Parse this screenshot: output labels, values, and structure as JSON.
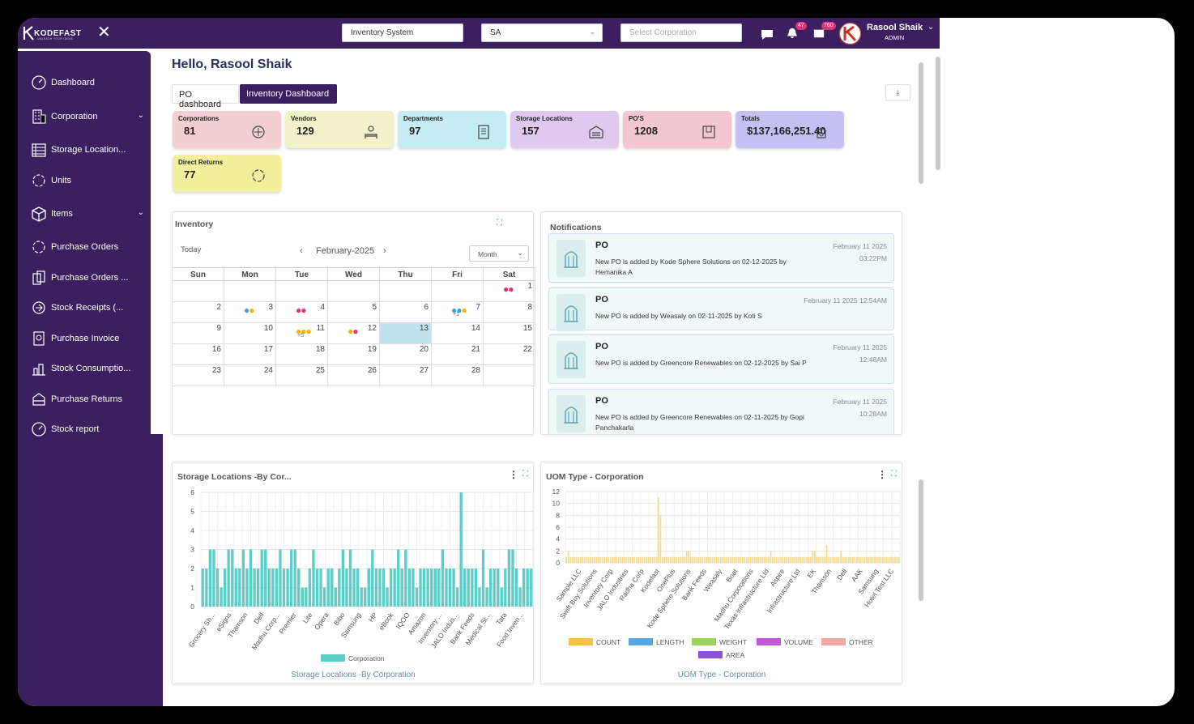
{
  "brand": {
    "name": "KODEFAST",
    "tagline": "UNLEASH YOUR IDEAS"
  },
  "topbar": {
    "system_value": "Inventory System",
    "company_value": "SA",
    "corporation_placeholder": "Select Corporation",
    "notif_count": "47",
    "msg_count": "760",
    "user_name": "Rasool Shaik",
    "user_role": "ADMIN"
  },
  "sidebar": {
    "items": [
      {
        "label": "Dashboard",
        "icon": "dashboard-icon"
      },
      {
        "label": "Corporation",
        "icon": "building-icon"
      },
      {
        "label": "Storage Location...",
        "icon": "warehouse-icon"
      },
      {
        "label": "Units",
        "icon": "units-icon"
      },
      {
        "label": "Items",
        "icon": "box-icon"
      },
      {
        "label": "Purchase Orders",
        "icon": "purchase-orders-icon"
      },
      {
        "label": "Purchase Orders ...",
        "icon": "purchase-orders-alt-icon"
      },
      {
        "label": "Stock Receipts (...",
        "icon": "stock-receipts-icon"
      },
      {
        "label": "Purchase Invoice",
        "icon": "invoice-icon"
      },
      {
        "label": "Stock Consumptio...",
        "icon": "stock-consumption-icon"
      },
      {
        "label": "Purchase Returns",
        "icon": "returns-icon"
      },
      {
        "label": "Stock report",
        "icon": "report-icon"
      }
    ]
  },
  "main": {
    "greeting": "Hello, Rasool Shaik",
    "tabs": [
      "PO dashboard",
      "Inventory Dashboard"
    ]
  },
  "cards": [
    {
      "label": "Corporations",
      "value": "81",
      "color": "#f3cfd2"
    },
    {
      "label": "Vendors",
      "value": "129",
      "color": "#f1f2c9"
    },
    {
      "label": "Departments",
      "value": "97",
      "color": "#c4ecf2"
    },
    {
      "label": "Storage Locations",
      "value": "157",
      "color": "#e0c9ee"
    },
    {
      "label": "PO'S",
      "value": "1208",
      "color": "#f3c7cf"
    },
    {
      "label": "Totals",
      "value": "$137,166,251.40",
      "color": "#c5c0f3"
    },
    {
      "label": "Direct Returns",
      "value": "77",
      "color": "#f4ef9c"
    }
  ],
  "calendar": {
    "title": "Inventory",
    "today": "Today",
    "month_label": "February-2025",
    "view": "Month",
    "days": [
      "Sun",
      "Mon",
      "Tue",
      "Wed",
      "Thu",
      "Fri",
      "Sat"
    ],
    "weeks": [
      [
        "",
        "",
        "",
        "",
        "",
        "",
        "1"
      ],
      [
        "2",
        "3",
        "4",
        "5",
        "6",
        "7",
        "8"
      ],
      [
        "9",
        "10",
        "11",
        "12",
        "13",
        "14",
        "15"
      ],
      [
        "16",
        "17",
        "18",
        "19",
        "20",
        "21",
        "22"
      ],
      [
        "23",
        "24",
        "25",
        "26",
        "27",
        "28",
        ""
      ]
    ],
    "highlight": "13",
    "events": {
      "1": {
        "dots": [
          "#e0347a",
          "#e0347a"
        ]
      },
      "3": {
        "dots": [
          "#3aa3d8",
          "#f4b400"
        ]
      },
      "4": {
        "dots": [
          "#e0347a",
          "#e0347a"
        ]
      },
      "7": {
        "dots": [
          "#3aa3d8",
          "#3aa3d8",
          "#f4b400"
        ],
        "more": "+1"
      },
      "11": {
        "dots": [
          "#f4b400",
          "#f4b400",
          "#f4b400"
        ],
        "more": "+5"
      },
      "12": {
        "dots": [
          "#f4b400",
          "#e0347a"
        ]
      }
    }
  },
  "notifications": {
    "title": "Notifications",
    "items": [
      {
        "type": "PO",
        "date": "February 11 2025",
        "time": "03:22PM",
        "message": "New PO is added by Kode Sphere Solutions on 02-12-2025 by Hemanika A"
      },
      {
        "type": "PO",
        "date": "February 11 2025 12:54AM",
        "time": "",
        "message": "New PO is added by Weasaly on 02-11-2025 by Koti S"
      },
      {
        "type": "PO",
        "date": "February 11 2025",
        "time": "12:48AM",
        "message": "New PO is added by Greencore Renewables on 02-12-2025 by Sai P"
      },
      {
        "type": "PO",
        "date": "February 11 2025",
        "time": "10:28AM",
        "message": "New PO is added by Greencore Renewables on 02-11-2025 by Gopi Panchakarla"
      }
    ]
  },
  "chart_data": [
    {
      "type": "bar",
      "title": "Storage Locations -By Cor...",
      "footer_title": "Storage Locations -By Corporation",
      "color": "#5ccdc7",
      "series": [
        {
          "name": "Corporation",
          "values": [
            2,
            2,
            3,
            3,
            2,
            1,
            2,
            3,
            3,
            2,
            2,
            3,
            2,
            3,
            2,
            2,
            3,
            3,
            2,
            2,
            2,
            3,
            2,
            2,
            3,
            3,
            2,
            1,
            1,
            2,
            3,
            2,
            2,
            1,
            2,
            2,
            1,
            2,
            3,
            2,
            3,
            2,
            2,
            1,
            1,
            2,
            3,
            2,
            2,
            2,
            1,
            2,
            2,
            3,
            2,
            3,
            2,
            2,
            1,
            2,
            2,
            2,
            2,
            2,
            2,
            3,
            2,
            2,
            2,
            1,
            6,
            2,
            2,
            2,
            2,
            1,
            3,
            1,
            2,
            2,
            2,
            1,
            2,
            3,
            3,
            2,
            1,
            2,
            2,
            2
          ]
        }
      ],
      "category_labels": [
        "Grocery Sh...",
        "eSigns",
        "Thamson",
        "Dell",
        "Madhu Corp...",
        "Premier",
        "Lite",
        "Opera",
        "Bibo",
        "Samsung",
        "HP",
        "eBook",
        "IQOO",
        "Amazon",
        "Inventory ...",
        "JALO Indus...",
        "Bank Feeds",
        "Medical St...",
        "Tata",
        "Food Inven..."
      ],
      "ylim": [
        0,
        6
      ],
      "yticks": [
        0,
        1,
        2,
        3,
        4,
        5,
        6
      ]
    },
    {
      "type": "bar",
      "title": "UOM Type - Corporation",
      "footer_title": "UOM Type - Corporation",
      "series": [
        {
          "name": "COUNT",
          "color": "#f5c04d"
        },
        {
          "name": "LENGTH",
          "color": "#58a8e2"
        },
        {
          "name": "WEIGHT",
          "color": "#9bd45a"
        },
        {
          "name": "VOLUME",
          "color": "#c257da"
        },
        {
          "name": "OTHER",
          "color": "#f2a9a4"
        },
        {
          "name": "AREA",
          "color": "#8a56d8"
        }
      ],
      "count_values": [
        1,
        2,
        1,
        1,
        1,
        1,
        1,
        1,
        1,
        1,
        1,
        1,
        1,
        1,
        1,
        1,
        1,
        1,
        1,
        1,
        1,
        1,
        1,
        1,
        1,
        1,
        1,
        1,
        1,
        1,
        1,
        1,
        1,
        1,
        1,
        1,
        1,
        1,
        1,
        1,
        1,
        1,
        1,
        1,
        1,
        1,
        11,
        8,
        1,
        1,
        1,
        1,
        1,
        1,
        1,
        1,
        1,
        1,
        1,
        1,
        2,
        2,
        1,
        1,
        1,
        1,
        1,
        1,
        1,
        1,
        1,
        1,
        1,
        1,
        1,
        1,
        1,
        1,
        1,
        1,
        1,
        1,
        1,
        1,
        1,
        1,
        1,
        1,
        1,
        1,
        1,
        1,
        1,
        1,
        1,
        1,
        1,
        1,
        1,
        1,
        1,
        1,
        2,
        1,
        1,
        1,
        1,
        1,
        1,
        1,
        1,
        1,
        1,
        1,
        1,
        1,
        1,
        1,
        1,
        1,
        1,
        1,
        1,
        2,
        2,
        1,
        1,
        1,
        1,
        1,
        3,
        1,
        1,
        1,
        1,
        1,
        1,
        2,
        1,
        1,
        1,
        1,
        1,
        1,
        1,
        1,
        1,
        1,
        1,
        1,
        1,
        1,
        1,
        1,
        1,
        1,
        1,
        1,
        1,
        1,
        1,
        1,
        1,
        1,
        1,
        1,
        1
      ],
      "category_labels": [
        "Sample LLC",
        "Swift Buy Solutions",
        "Inventory Corp",
        "JALO Industries",
        "Radha Corp",
        "Kodefast",
        "OnePlus",
        "Kode Sphere Solutions",
        "Bank Feeds",
        "Weasaly",
        "Boat",
        "Madhu Corporations",
        "Texas Infrastructure Ltd",
        "Aspire",
        "Infrastructure Ltd",
        "EK",
        "Thamson",
        "Dell",
        "AAK",
        "Samsung",
        "Hotel Test LLC"
      ],
      "ylim": [
        0,
        12
      ],
      "yticks": [
        0,
        2,
        4,
        6,
        8,
        10,
        12
      ]
    }
  ]
}
